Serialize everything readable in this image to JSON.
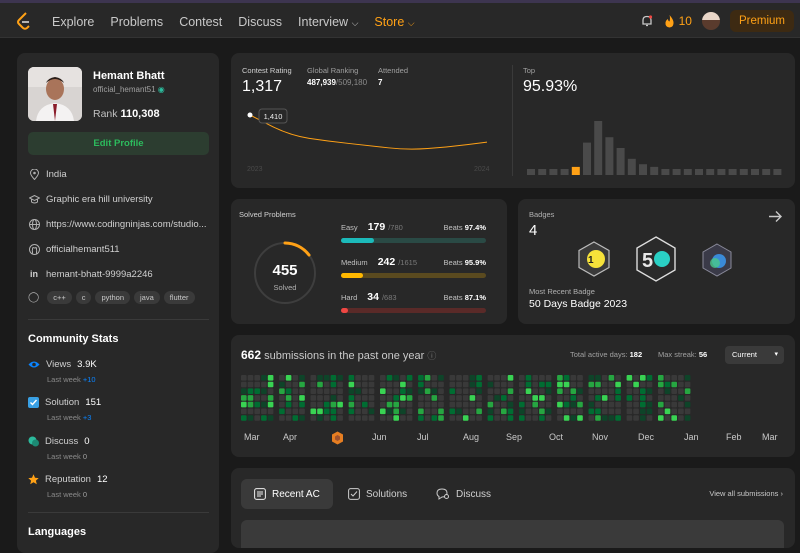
{
  "nav": {
    "items": [
      "Explore",
      "Problems",
      "Contest",
      "Discuss",
      "Interview"
    ],
    "store": "Store",
    "streak": "10",
    "premium": "Premium"
  },
  "profile": {
    "name": "Hemant Bhatt",
    "handle": "official_hemant51",
    "rank_label": "Rank",
    "rank": "110,308",
    "edit": "Edit Profile",
    "location": "India",
    "school": "Graphic era hill university",
    "website": "https://www.codingninjas.com/studio...",
    "github": "officialhemant511",
    "linkedin": "hemant-bhatt-9999a2246",
    "tags": [
      "c++",
      "c",
      "python",
      "java",
      "flutter"
    ]
  },
  "community": {
    "title": "Community Stats",
    "stats": [
      {
        "label": "Views",
        "value": "3.9K",
        "week": "Last week",
        "delta": "+10"
      },
      {
        "label": "Solution",
        "value": "151",
        "week": "Last week",
        "delta": "+3"
      },
      {
        "label": "Discuss",
        "value": "0",
        "week": "Last week",
        "delta": "0"
      },
      {
        "label": "Reputation",
        "value": "12",
        "week": "Last week",
        "delta": "0"
      }
    ],
    "languages": "Languages"
  },
  "contest": {
    "rating_label": "Contest Rating",
    "rating": "1,317",
    "global_label": "Global Ranking",
    "global": "487,939",
    "global_total": "/509,180",
    "attended_label": "Attended",
    "attended": "7",
    "tooltip": "1,410",
    "year_start": "2023",
    "year_end": "2024",
    "top_label": "Top",
    "top": "95.93%"
  },
  "chart_data": [
    {
      "type": "line",
      "title": "Contest Rating",
      "x": [
        "2023",
        "",
        "",
        "",
        "",
        "",
        "2024"
      ],
      "values": [
        1410,
        1340,
        1320,
        1305,
        1290,
        1300,
        1317
      ]
    },
    {
      "type": "bar",
      "title": "Top",
      "values": [
        1,
        1,
        1,
        2,
        3,
        12,
        20,
        14,
        10,
        6,
        4,
        3,
        2,
        2,
        1,
        1,
        1,
        1,
        1,
        1,
        1,
        1,
        1
      ],
      "highlight_index": 4
    }
  ],
  "solved": {
    "title": "Solved Problems",
    "count": "455",
    "label": "Solved",
    "levels": [
      {
        "name": "Easy",
        "n": "179",
        "total": "/780",
        "beats_label": "Beats",
        "beats": "97.4%",
        "frac": 0.229,
        "color": "#1cbaba",
        "track": "#2a4a45"
      },
      {
        "name": "Medium",
        "n": "242",
        "total": "/1615",
        "beats_label": "Beats",
        "beats": "95.9%",
        "frac": 0.15,
        "color": "#ffb800",
        "track": "#5a4a1f"
      },
      {
        "name": "Hard",
        "n": "34",
        "total": "/683",
        "beats_label": "Beats",
        "beats": "87.1%",
        "frac": 0.05,
        "color": "#ef4743",
        "track": "#5a2a28"
      }
    ]
  },
  "badges": {
    "title": "Badges",
    "count": "4",
    "recent_label": "Most Recent Badge",
    "recent": "50 Days Badge 2023"
  },
  "subs": {
    "count": "662",
    "text": "submissions in the past one year",
    "active_label": "Total active days:",
    "active": "182",
    "streak_label": "Max streak:",
    "streak": "56",
    "select": "Current",
    "months": [
      "Mar",
      "Apr",
      "May",
      "Jun",
      "Jul",
      "Aug",
      "Sep",
      "Oct",
      "Nov",
      "Dec",
      "Jan",
      "Feb",
      "Mar"
    ]
  },
  "tabs": {
    "recent": "Recent AC",
    "solutions": "Solutions",
    "discuss": "Discuss",
    "view_all": "View all submissions"
  }
}
